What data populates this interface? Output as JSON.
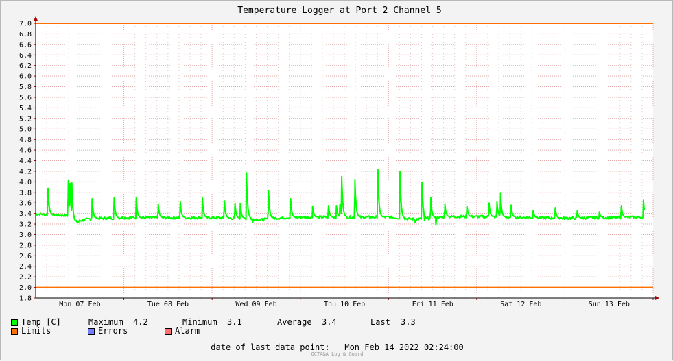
{
  "chart_data": {
    "type": "line",
    "title": "Temperature Logger at Port 2 Channel 5",
    "ylim": [
      1.8,
      7.0
    ],
    "yticks": [
      "1.8",
      "2.0",
      "2.2",
      "2.4",
      "2.6",
      "2.8",
      "3.0",
      "3.2",
      "3.4",
      "3.6",
      "3.8",
      "4.0",
      "4.2",
      "4.4",
      "4.6",
      "4.8",
      "5.0",
      "5.2",
      "5.4",
      "5.6",
      "5.8",
      "6.0",
      "6.2",
      "6.4",
      "6.6",
      "6.8",
      "7.0"
    ],
    "xlim": [
      0,
      7
    ],
    "xticks": [
      {
        "label": "Mon 07 Feb",
        "pos": 0.5
      },
      {
        "label": "Tue 08 Feb",
        "pos": 1.5
      },
      {
        "label": "Wed 09 Feb",
        "pos": 2.5
      },
      {
        "label": "Thu 10 Feb",
        "pos": 3.5
      },
      {
        "label": "Fri 11 Feb",
        "pos": 4.5
      },
      {
        "label": "Sat 12 Feb",
        "pos": 5.5
      },
      {
        "label": "Sun 13 Feb",
        "pos": 6.5
      }
    ],
    "grid": true,
    "limits": [
      2.0,
      7.0
    ],
    "series": [
      {
        "name": "Temp [C]",
        "color": "#00ff00",
        "baseline": [
          [
            0,
            3.39
          ],
          [
            0.14,
            3.38
          ],
          [
            0.36,
            3.36
          ],
          [
            0.44,
            3.24
          ],
          [
            0.56,
            3.28
          ],
          [
            0.62,
            3.3
          ],
          [
            1.0,
            3.32
          ],
          [
            2.0,
            3.32
          ],
          [
            2.45,
            3.3
          ],
          [
            2.55,
            3.28
          ],
          [
            2.7,
            3.31
          ],
          [
            3.0,
            3.33
          ],
          [
            4.0,
            3.33
          ],
          [
            4.3,
            3.29
          ],
          [
            4.7,
            3.34
          ],
          [
            5.0,
            3.34
          ],
          [
            6.0,
            3.31
          ],
          [
            6.9,
            3.33
          ]
        ],
        "spikes": [
          [
            0.14,
            3.88
          ],
          [
            0.37,
            4.02
          ],
          [
            0.39,
            3.97
          ],
          [
            0.41,
            3.98
          ],
          [
            0.64,
            3.68
          ],
          [
            0.89,
            3.7
          ],
          [
            1.14,
            3.7
          ],
          [
            1.39,
            3.57
          ],
          [
            1.64,
            3.62
          ],
          [
            1.89,
            3.7
          ],
          [
            2.14,
            3.64
          ],
          [
            2.26,
            3.59
          ],
          [
            2.32,
            3.59
          ],
          [
            2.39,
            4.17
          ],
          [
            2.64,
            3.83
          ],
          [
            2.89,
            3.68
          ],
          [
            3.14,
            3.54
          ],
          [
            3.32,
            3.55
          ],
          [
            3.41,
            3.55
          ],
          [
            3.45,
            3.57
          ],
          [
            3.47,
            4.1
          ],
          [
            3.62,
            4.03
          ],
          [
            3.88,
            4.23
          ],
          [
            4.13,
            4.19
          ],
          [
            4.38,
            3.99
          ],
          [
            4.48,
            3.7
          ],
          [
            4.64,
            3.57
          ],
          [
            4.89,
            3.54
          ],
          [
            5.14,
            3.6
          ],
          [
            5.23,
            3.62
          ],
          [
            5.27,
            3.78
          ],
          [
            5.39,
            3.56
          ],
          [
            5.64,
            3.45
          ],
          [
            5.89,
            3.51
          ],
          [
            6.14,
            3.45
          ],
          [
            6.39,
            3.43
          ],
          [
            6.64,
            3.55
          ],
          [
            6.89,
            3.65
          ]
        ],
        "dips": [
          [
            0.48,
            3.2
          ],
          [
            2.46,
            3.22
          ],
          [
            4.3,
            3.22
          ],
          [
            4.41,
            3.25
          ],
          [
            4.54,
            3.14
          ]
        ],
        "last": 3.33
      },
      {
        "name": "Limits",
        "color": "#ff7000"
      },
      {
        "name": "Errors",
        "color": "#7080ff"
      },
      {
        "name": "Alarm",
        "color": "#ff7070"
      }
    ],
    "stats": {
      "maximum_label": "Maximum",
      "maximum": "4.2",
      "minimum_label": "Minimum",
      "minimum": "3.1",
      "average_label": "Average",
      "average": "3.4",
      "last_label": "Last",
      "last": "3.3"
    },
    "footer": {
      "label": "date of last data point:",
      "value": "Mon Feb 14 2022 02:24:00"
    },
    "watermark": "OCTA&A Log & Guard"
  }
}
